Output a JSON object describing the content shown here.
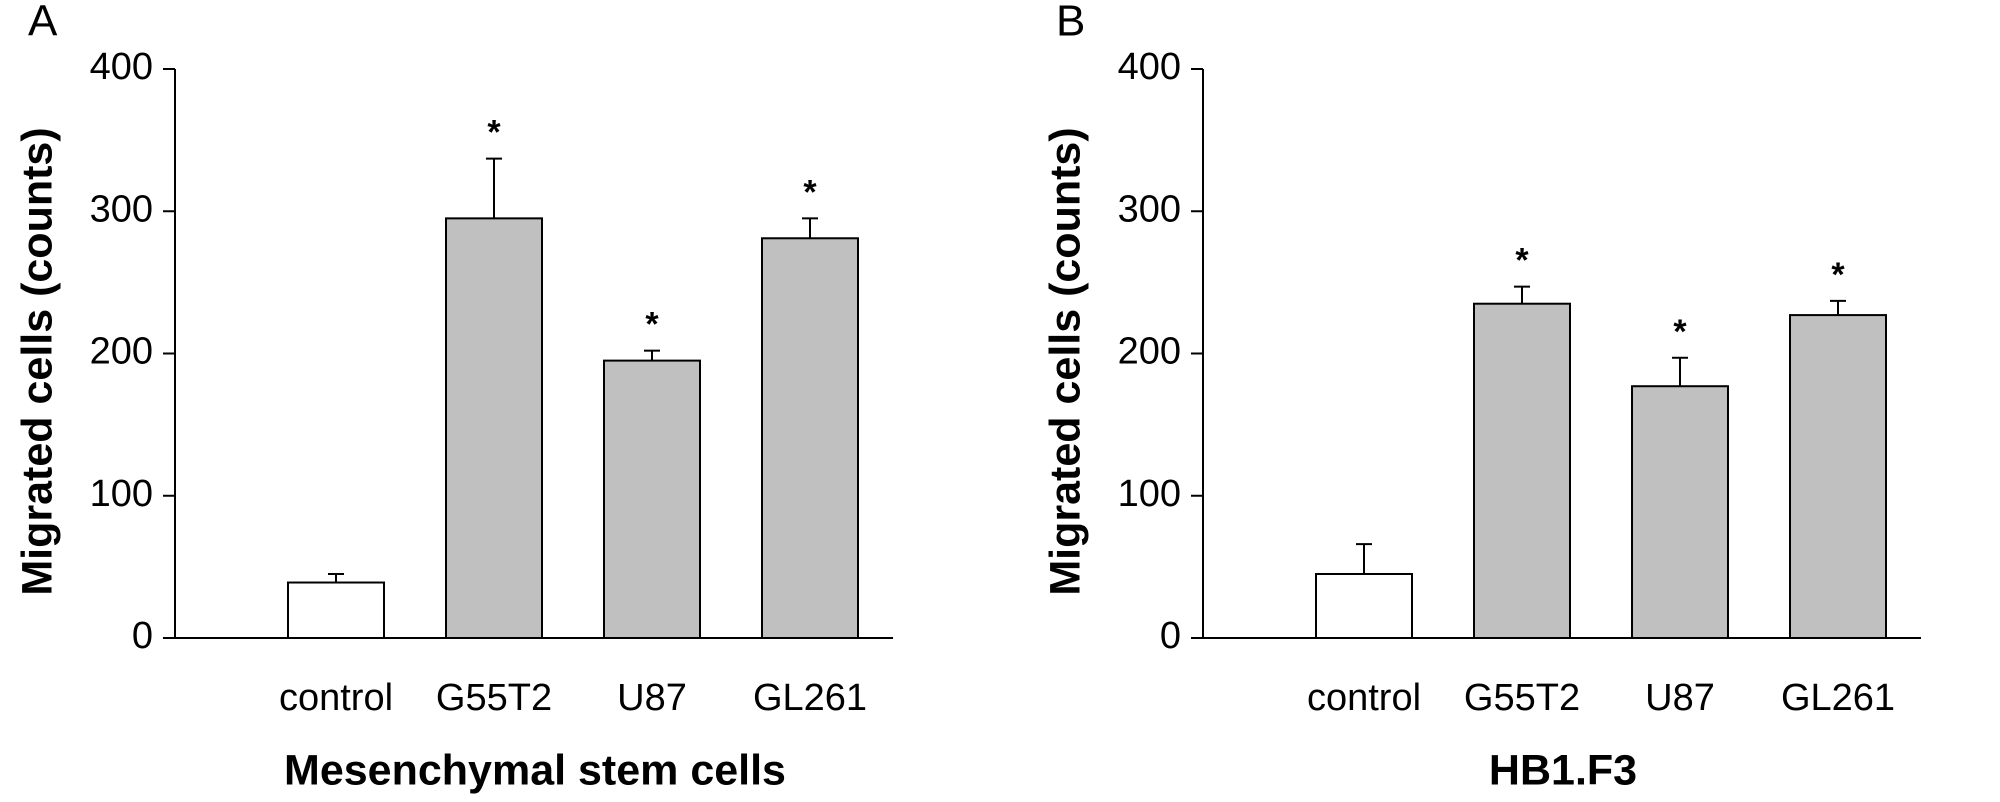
{
  "chart_data": [
    {
      "type": "bar",
      "panel_label": "A",
      "xlabel": "Mesenchymal stem cells",
      "ylabel": "Migrated cells (counts)",
      "categories": [
        "control",
        "G55T2",
        "U87",
        "GL261"
      ],
      "values": [
        39,
        295,
        195,
        281
      ],
      "errors": [
        6,
        42,
        7,
        14
      ],
      "significance": [
        null,
        "*",
        "*",
        "*"
      ],
      "colors": [
        "#ffffff",
        "#c0c0c0",
        "#c0c0c0",
        "#c0c0c0"
      ],
      "ylim": [
        0,
        400
      ],
      "yticks": [
        0,
        100,
        200,
        300,
        400
      ]
    },
    {
      "type": "bar",
      "panel_label": "B",
      "xlabel": "HB1.F3",
      "ylabel": "Migrated cells (counts)",
      "categories": [
        "control",
        "G55T2",
        "U87",
        "GL261"
      ],
      "values": [
        45,
        235,
        177,
        227
      ],
      "errors": [
        21,
        12,
        20,
        10
      ],
      "significance": [
        null,
        "*",
        "*",
        "*"
      ],
      "colors": [
        "#ffffff",
        "#c0c0c0",
        "#c0c0c0",
        "#c0c0c0"
      ],
      "ylim": [
        0,
        400
      ],
      "yticks": [
        0,
        100,
        200,
        300,
        400
      ]
    }
  ]
}
